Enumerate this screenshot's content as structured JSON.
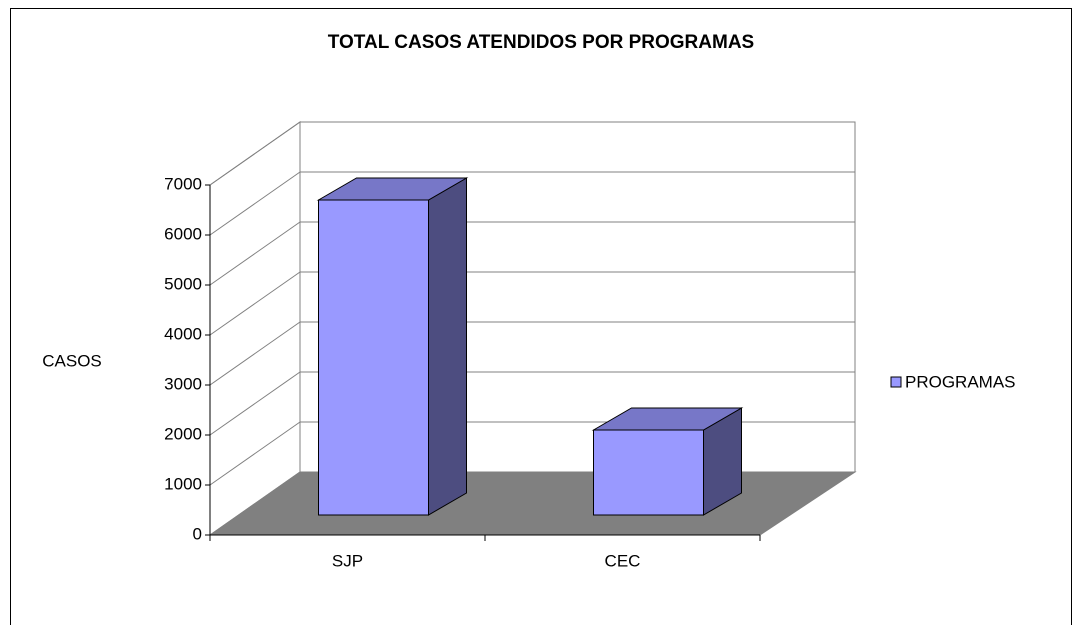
{
  "chart_data": {
    "type": "bar3d",
    "title": "TOTAL CASOS ATENDIDOS POR PROGRAMAS",
    "y_label": "CASOS",
    "categories": [
      "SJP",
      "CEC"
    ],
    "series": [
      {
        "name": "PROGRAMAS",
        "color": "#9999ff",
        "values": [
          6300,
          1700
        ]
      }
    ],
    "ylim": [
      0,
      7000
    ],
    "yticks": [
      0,
      1000,
      2000,
      3000,
      4000,
      5000,
      6000,
      7000
    ],
    "grid": true,
    "legend": "right"
  }
}
